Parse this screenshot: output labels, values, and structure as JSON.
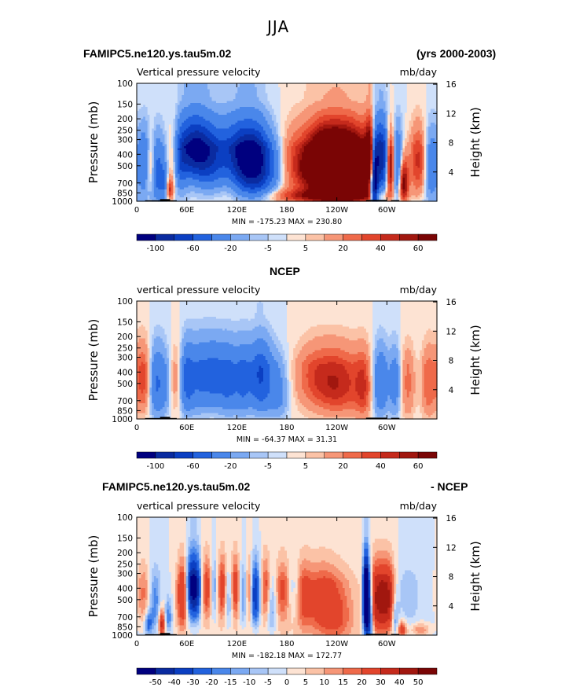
{
  "figure_title": "JJA",
  "panels": [
    {
      "left_header": "FAMIPC5.ne120.ys.tau5m.02",
      "right_header": "(yrs 2000-2003)",
      "left_string": "Vertical pressure velocity",
      "units": "mb/day",
      "minmax": "MIN = -175.23   MAX = 230.80",
      "ylabel_left": "Pressure (mb)",
      "ylabel_right": "Height (km)",
      "colorbar_labels": [
        "-100",
        "-60",
        "-20",
        "-5",
        "5",
        "20",
        "40",
        "60"
      ]
    },
    {
      "left_header": "",
      "center_header": "NCEP",
      "right_header": "",
      "left_string": "vertical pressure velocity",
      "units": "mb/day",
      "minmax": "MIN = -64.37   MAX =  31.31",
      "ylabel_left": "Pressure (mb)",
      "ylabel_right": "Height (km)",
      "colorbar_labels": [
        "-100",
        "-60",
        "-20",
        "-5",
        "5",
        "20",
        "40",
        "60"
      ]
    },
    {
      "left_header": "FAMIPC5.ne120.ys.tau5m.02",
      "right_header": "- NCEP",
      "left_string": "vertical pressure velocity",
      "units": "mb/day",
      "minmax": "MIN = -182.18   MAX = 172.77",
      "ylabel_left": "Pressure (mb)",
      "ylabel_right": "Height (km)",
      "colorbar_labels": [
        "-50",
        "-40",
        "-30",
        "-20",
        "-15",
        "-10",
        "-5",
        "0",
        "5",
        "10",
        "15",
        "20",
        "30",
        "40",
        "50"
      ]
    }
  ],
  "colors": {
    "blue": [
      "#00007f",
      "#0a2ba0",
      "#0b3fc2",
      "#2262de",
      "#4a87ea",
      "#7ba9f2",
      "#a8c6f6",
      "#cfe0fa"
    ],
    "red": [
      "#fde3d3",
      "#fbc2a6",
      "#f69677",
      "#ef6a4a",
      "#e2452c",
      "#c52a1c",
      "#a1170f",
      "#7a0505"
    ]
  },
  "chart_data": {
    "type": "heatmap",
    "x_tick_labels": [
      "0",
      "60E",
      "120E",
      "180",
      "120W",
      "60W"
    ],
    "x_ticks_deg": [
      0,
      60,
      120,
      180,
      240,
      300
    ],
    "xlim_deg": [
      0,
      360
    ],
    "y_tick_labels_left": [
      "100",
      "150",
      "200",
      "250",
      "300",
      "400",
      "500",
      "700",
      "850",
      "1000"
    ],
    "y_ticks_mb": [
      100,
      150,
      200,
      250,
      300,
      400,
      500,
      700,
      850,
      1000
    ],
    "ylim_mb": [
      1000,
      100
    ],
    "y_tick_labels_right": [
      "4",
      "8",
      "12",
      "16"
    ],
    "y_ticks_km": [
      4,
      8,
      12,
      16
    ],
    "panels": [
      {
        "name": "FAMIPC5.ne120.ys.tau5m.02",
        "levels": [
          -100,
          -80,
          -60,
          -40,
          -20,
          -10,
          -5,
          0,
          5,
          10,
          20,
          30,
          40,
          50,
          60
        ],
        "min": -175.23,
        "max": 230.8,
        "amp": 110,
        "features": [
          {
            "lon": 0,
            "w": 70,
            "v": -0.08
          },
          {
            "lon": 180,
            "w": 110,
            "v": 0.05
          },
          {
            "lon": 10,
            "p": 450,
            "w": 5,
            "h": 250,
            "v": -0.35
          },
          {
            "lon": 16,
            "p": 500,
            "w": 4,
            "h": 200,
            "v": 0.32
          },
          {
            "lon": 25,
            "p": 600,
            "w": 5,
            "h": 250,
            "v": -0.4
          },
          {
            "lon": 33,
            "p": 700,
            "w": 3,
            "h": 200,
            "v": -0.25
          },
          {
            "lon": 40,
            "p": 800,
            "w": 3,
            "h": 120,
            "v": 0.4
          },
          {
            "lon": 44,
            "p": 400,
            "w": 5,
            "h": 260,
            "v": 0.25
          },
          {
            "lon": 52,
            "p": 450,
            "w": 6,
            "h": 250,
            "v": -0.35
          },
          {
            "lon": 68,
            "p": 280,
            "w": 12,
            "h": 220,
            "v": -1.0
          },
          {
            "lon": 88,
            "p": 380,
            "w": 12,
            "h": 250,
            "v": -0.6
          },
          {
            "lon": 112,
            "p": 320,
            "w": 12,
            "h": 250,
            "v": -0.5
          },
          {
            "lon": 125,
            "p": 420,
            "w": 9,
            "h": 280,
            "v": -0.45
          },
          {
            "lon": 140,
            "p": 420,
            "w": 11,
            "h": 300,
            "v": -0.95
          },
          {
            "lon": 158,
            "p": 500,
            "w": 12,
            "h": 250,
            "v": -0.45
          },
          {
            "lon": 205,
            "p": 320,
            "w": 10,
            "h": 120,
            "v": -0.15
          },
          {
            "lon": 222,
            "p": 450,
            "w": 24,
            "h": 250,
            "v": 0.9
          },
          {
            "lon": 255,
            "p": 500,
            "w": 24,
            "h": 300,
            "v": 0.9
          },
          {
            "lon": 232,
            "p": 900,
            "w": 40,
            "h": 80,
            "v": 0.55
          },
          {
            "lon": 280,
            "p": 300,
            "w": 4,
            "h": 250,
            "v": 0.6
          },
          {
            "lon": 285,
            "p": 650,
            "w": 3,
            "h": 350,
            "v": -1.3
          },
          {
            "lon": 291,
            "p": 400,
            "w": 4,
            "h": 300,
            "v": -0.9
          },
          {
            "lon": 298,
            "p": 400,
            "w": 4,
            "h": 300,
            "v": -0.7
          },
          {
            "lon": 304,
            "p": 500,
            "w": 4,
            "h": 250,
            "v": 0.8
          },
          {
            "lon": 312,
            "p": 500,
            "w": 5,
            "h": 300,
            "v": -0.5
          },
          {
            "lon": 320,
            "p": 700,
            "w": 4,
            "h": 200,
            "v": 0.7
          },
          {
            "lon": 338,
            "p": 450,
            "w": 8,
            "h": 300,
            "v": 0.45
          },
          {
            "lon": 352,
            "p": 500,
            "w": 6,
            "h": 300,
            "v": -0.3
          }
        ]
      },
      {
        "name": "NCEP",
        "levels": [
          -100,
          -80,
          -60,
          -40,
          -20,
          -10,
          -5,
          0,
          5,
          10,
          20,
          30,
          40,
          50,
          60
        ],
        "min": -64.37,
        "max": 31.31,
        "amp": 55,
        "features": [
          {
            "lon": 180,
            "w": 110,
            "v": 0.05
          },
          {
            "lon": 8,
            "p": 450,
            "w": 7,
            "h": 280,
            "v": 0.65
          },
          {
            "lon": 22,
            "p": 500,
            "w": 6,
            "h": 300,
            "v": -0.7
          },
          {
            "lon": 33,
            "p": 500,
            "w": 6,
            "h": 300,
            "v": -0.45
          },
          {
            "lon": 48,
            "p": 450,
            "w": 6,
            "h": 280,
            "v": 0.4
          },
          {
            "lon": 60,
            "p": 450,
            "w": 7,
            "h": 300,
            "v": -0.95
          },
          {
            "lon": 77,
            "p": 400,
            "w": 8,
            "h": 300,
            "v": -0.75
          },
          {
            "lon": 93,
            "p": 400,
            "w": 8,
            "h": 280,
            "v": -0.8
          },
          {
            "lon": 110,
            "p": 450,
            "w": 8,
            "h": 300,
            "v": -0.85
          },
          {
            "lon": 127,
            "p": 450,
            "w": 7,
            "h": 300,
            "v": -0.75
          },
          {
            "lon": 148,
            "p": 420,
            "w": 10,
            "h": 300,
            "v": -1.15
          },
          {
            "lon": 170,
            "p": 600,
            "w": 9,
            "h": 280,
            "v": -0.5
          },
          {
            "lon": 210,
            "p": 400,
            "w": 15,
            "h": 200,
            "v": 0.3
          },
          {
            "lon": 240,
            "p": 500,
            "w": 22,
            "h": 250,
            "v": 0.85
          },
          {
            "lon": 272,
            "p": 550,
            "w": 7,
            "h": 280,
            "v": 0.5
          },
          {
            "lon": 292,
            "p": 500,
            "w": 7,
            "h": 300,
            "v": -0.8
          },
          {
            "lon": 310,
            "p": 500,
            "w": 5,
            "h": 300,
            "v": -0.55
          },
          {
            "lon": 325,
            "p": 500,
            "w": 6,
            "h": 300,
            "v": 0.4
          },
          {
            "lon": 350,
            "p": 500,
            "w": 6,
            "h": 300,
            "v": 0.5
          }
        ]
      },
      {
        "name": "FAMIPC5.ne120.ys.tau5m.02 - NCEP",
        "levels": [
          -50,
          -40,
          -30,
          -20,
          -15,
          -10,
          -5,
          0,
          5,
          10,
          15,
          20,
          30,
          40,
          50
        ],
        "min": -182.18,
        "max": 172.77,
        "amp": 40,
        "features": [
          {
            "lon": 180,
            "w": 150,
            "v": 0.1
          },
          {
            "lon": 0,
            "w": 40,
            "v": -0.1
          },
          {
            "lon": 8,
            "p": 450,
            "w": 6,
            "h": 250,
            "v": 0.45
          },
          {
            "lon": 14,
            "p": 800,
            "w": 3,
            "h": 120,
            "v": -0.6
          },
          {
            "lon": 22,
            "p": 550,
            "w": 5,
            "h": 250,
            "v": -0.45
          },
          {
            "lon": 30,
            "p": 800,
            "w": 3,
            "h": 150,
            "v": 0.9
          },
          {
            "lon": 38,
            "p": 700,
            "w": 3,
            "h": 150,
            "v": -0.5
          },
          {
            "lon": 55,
            "p": 450,
            "w": 5,
            "h": 300,
            "v": 0.8
          },
          {
            "lon": 64,
            "p": 350,
            "w": 4,
            "h": 250,
            "v": -0.9
          },
          {
            "lon": 71,
            "p": 350,
            "w": 5,
            "h": 250,
            "v": -1.3
          },
          {
            "lon": 84,
            "p": 350,
            "w": 5,
            "h": 250,
            "v": 0.7
          },
          {
            "lon": 93,
            "p": 350,
            "w": 4,
            "h": 250,
            "v": -0.6
          },
          {
            "lon": 103,
            "p": 350,
            "w": 5,
            "h": 250,
            "v": 0.75
          },
          {
            "lon": 110,
            "p": 450,
            "w": 4,
            "h": 250,
            "v": -0.6
          },
          {
            "lon": 118,
            "p": 350,
            "w": 4,
            "h": 250,
            "v": 0.7
          },
          {
            "lon": 128,
            "p": 450,
            "w": 4,
            "h": 250,
            "v": -0.5
          },
          {
            "lon": 135,
            "p": 400,
            "w": 3,
            "h": 250,
            "v": 0.55
          },
          {
            "lon": 142,
            "p": 450,
            "w": 4,
            "h": 250,
            "v": -1.1
          },
          {
            "lon": 155,
            "p": 350,
            "w": 4,
            "h": 250,
            "v": 0.5
          },
          {
            "lon": 162,
            "p": 600,
            "w": 4,
            "h": 250,
            "v": -0.45
          },
          {
            "lon": 175,
            "p": 400,
            "w": 6,
            "h": 250,
            "v": 0.45
          },
          {
            "lon": 188,
            "p": 400,
            "w": 5,
            "h": 200,
            "v": -0.25
          },
          {
            "lon": 200,
            "p": 450,
            "w": 6,
            "h": 300,
            "v": 0.35
          },
          {
            "lon": 220,
            "p": 500,
            "w": 15,
            "h": 300,
            "v": 0.45
          },
          {
            "lon": 240,
            "p": 700,
            "w": 15,
            "h": 300,
            "v": 0.4
          },
          {
            "lon": 275,
            "p": 450,
            "w": 2.5,
            "h": 350,
            "v": -2.3
          },
          {
            "lon": 280,
            "p": 700,
            "w": 3,
            "h": 300,
            "v": -0.9
          },
          {
            "lon": 284,
            "p": 500,
            "w": 3,
            "h": 300,
            "v": 0.5
          },
          {
            "lon": 292,
            "p": 500,
            "w": 6,
            "h": 300,
            "v": 1.0
          },
          {
            "lon": 303,
            "p": 500,
            "w": 5,
            "h": 300,
            "v": 0.8
          },
          {
            "lon": 310,
            "p": 750,
            "w": 3,
            "h": 200,
            "v": -0.5
          },
          {
            "lon": 318,
            "p": 900,
            "w": 4,
            "h": 100,
            "v": 0.7
          },
          {
            "lon": 325,
            "p": 450,
            "w": 10,
            "h": 300,
            "v": -0.2
          },
          {
            "lon": 340,
            "p": 900,
            "w": 8,
            "h": 80,
            "v": 0.4
          }
        ]
      }
    ]
  }
}
